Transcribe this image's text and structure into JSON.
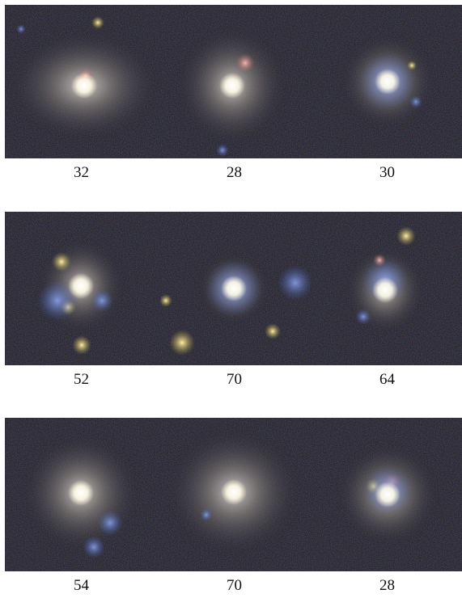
{
  "panels": [
    [
      {
        "label": "32"
      },
      {
        "label": "28"
      },
      {
        "label": "30"
      }
    ],
    [
      {
        "label": "52"
      },
      {
        "label": "70"
      },
      {
        "label": "64"
      }
    ],
    [
      {
        "label": "54"
      },
      {
        "label": "70"
      },
      {
        "label": "28"
      }
    ]
  ]
}
